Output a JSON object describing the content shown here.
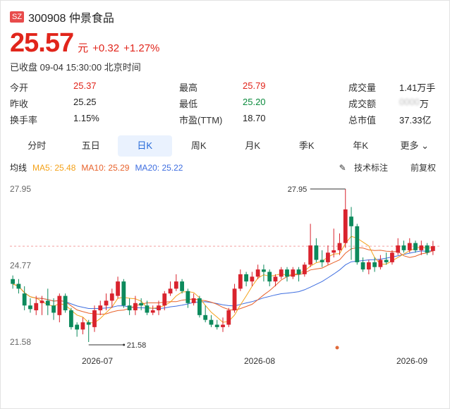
{
  "header": {
    "exchange": "SZ",
    "code_name": "300908 仲景食品"
  },
  "quote": {
    "price": "25.57",
    "currency": "元",
    "change": "+0.32",
    "change_pct": "+1.27%",
    "status": "已收盘 09-04 15:30:00 北京时间"
  },
  "stats": [
    [
      {
        "label": "今开",
        "value": "25.37",
        "color": "red"
      },
      {
        "label": "最高",
        "value": "25.79",
        "color": "red"
      },
      {
        "label": "成交量",
        "value": "1.41万手",
        "color": ""
      }
    ],
    [
      {
        "label": "昨收",
        "value": "25.25",
        "color": ""
      },
      {
        "label": "最低",
        "value": "25.20",
        "color": "green"
      },
      {
        "label": "成交额",
        "value": "万",
        "color": "blur"
      }
    ],
    [
      {
        "label": "换手率",
        "value": "1.15%",
        "color": ""
      },
      {
        "label": "市盈(TTM)",
        "value": "18.70",
        "color": ""
      },
      {
        "label": "总市值",
        "value": "37.33亿",
        "color": ""
      }
    ]
  ],
  "tabs": [
    "分时",
    "五日",
    "日K",
    "周K",
    "月K",
    "季K",
    "年K",
    "更多"
  ],
  "active_tab": 2,
  "ma": {
    "label": "均线",
    "ma5": "MA5: 25.48",
    "ma10": "MA10: 25.29",
    "ma20": "MA20: 25.22"
  },
  "toolbar": {
    "tech": "技术标注",
    "fq": "前复权"
  },
  "chart_data": {
    "type": "candlestick",
    "y_ticks": [
      "27.95",
      "24.77",
      "21.58"
    ],
    "x_ticks": [
      "2026-07",
      "2026-08",
      "2026-09"
    ],
    "ylim": [
      21.58,
      27.95
    ],
    "annotations": {
      "high": "27.95",
      "low": "21.58"
    },
    "candles": [
      [
        24.2,
        24.0,
        24.35,
        23.8
      ],
      [
        24.0,
        23.8,
        24.2,
        23.6
      ],
      [
        23.6,
        23.1,
        23.9,
        22.9
      ],
      [
        23.1,
        22.95,
        23.4,
        22.8
      ],
      [
        22.9,
        23.2,
        23.5,
        22.7
      ],
      [
        23.2,
        23.3,
        23.5,
        22.7
      ],
      [
        23.3,
        23.1,
        23.8,
        22.7
      ],
      [
        23.1,
        22.8,
        23.4,
        22.5
      ],
      [
        22.7,
        23.5,
        23.6,
        22.4
      ],
      [
        23.5,
        22.9,
        23.6,
        22.8
      ],
      [
        22.9,
        22.2,
        23.0,
        22.1
      ],
      [
        22.3,
        22.1,
        22.4,
        21.8
      ],
      [
        22.1,
        22.4,
        22.6,
        21.9
      ],
      [
        22.4,
        22.3,
        22.5,
        21.58
      ],
      [
        22.2,
        22.9,
        23.1,
        22.0
      ],
      [
        22.9,
        23.1,
        23.3,
        22.7
      ],
      [
        23.1,
        23.3,
        23.6,
        22.9
      ],
      [
        23.3,
        23.6,
        23.8,
        23.0
      ],
      [
        23.5,
        24.1,
        24.3,
        23.4
      ],
      [
        24.1,
        23.1,
        24.2,
        23.0
      ],
      [
        23.1,
        22.9,
        23.4,
        22.7
      ],
      [
        22.9,
        23.2,
        23.5,
        22.7
      ],
      [
        23.2,
        23.1,
        23.4,
        22.9
      ],
      [
        23.1,
        22.8,
        23.3,
        22.7
      ],
      [
        22.8,
        22.9,
        23.1,
        22.7
      ],
      [
        22.9,
        23.1,
        23.3,
        22.7
      ],
      [
        23.1,
        23.6,
        23.7,
        22.9
      ],
      [
        23.6,
        23.8,
        24.1,
        23.5
      ],
      [
        23.8,
        24.1,
        24.4,
        23.7
      ],
      [
        24.1,
        23.7,
        24.2,
        23.6
      ],
      [
        23.7,
        23.2,
        23.8,
        23.0
      ],
      [
        23.2,
        23.4,
        23.6,
        23.1
      ],
      [
        23.4,
        22.7,
        23.5,
        22.6
      ],
      [
        22.7,
        22.5,
        23.1,
        22.4
      ],
      [
        22.5,
        22.3,
        22.7,
        22.2
      ],
      [
        22.3,
        22.2,
        22.5,
        22.1
      ],
      [
        22.2,
        22.3,
        22.6,
        22.0
      ],
      [
        22.3,
        22.9,
        23.0,
        22.2
      ],
      [
        22.9,
        23.8,
        24.0,
        22.8
      ],
      [
        23.8,
        24.4,
        24.6,
        23.7
      ],
      [
        24.4,
        24.1,
        24.5,
        23.9
      ],
      [
        24.1,
        24.3,
        24.5,
        23.9
      ],
      [
        24.3,
        24.6,
        24.8,
        24.2
      ],
      [
        24.6,
        24.5,
        24.8,
        24.1
      ],
      [
        24.5,
        24.1,
        24.6,
        23.9
      ],
      [
        24.1,
        24.3,
        24.4,
        23.9
      ],
      [
        24.3,
        24.6,
        24.7,
        24.2
      ],
      [
        24.6,
        24.3,
        24.7,
        24.1
      ],
      [
        24.3,
        24.6,
        24.7,
        24.2
      ],
      [
        24.6,
        24.4,
        24.7,
        24.1
      ],
      [
        24.4,
        24.8,
        24.9,
        24.3
      ],
      [
        24.8,
        25.6,
        26.5,
        24.7
      ],
      [
        25.6,
        25.0,
        25.9,
        24.9
      ],
      [
        25.0,
        24.9,
        25.4,
        24.7
      ],
      [
        24.9,
        25.3,
        25.6,
        24.8
      ],
      [
        25.3,
        25.4,
        26.3,
        25.1
      ],
      [
        25.4,
        25.7,
        26.1,
        25.2
      ],
      [
        25.7,
        27.1,
        27.95,
        25.5
      ],
      [
        26.8,
        26.4,
        27.2,
        25.0
      ],
      [
        26.4,
        24.9,
        26.5,
        24.8
      ],
      [
        24.9,
        24.6,
        25.1,
        24.5
      ],
      [
        24.6,
        24.9,
        25.0,
        24.4
      ],
      [
        24.9,
        24.7,
        25.1,
        24.5
      ],
      [
        24.7,
        25.0,
        25.2,
        24.6
      ],
      [
        25.0,
        24.9,
        25.3,
        24.8
      ],
      [
        24.9,
        25.3,
        25.4,
        24.8
      ],
      [
        25.3,
        25.6,
        25.9,
        25.2
      ],
      [
        25.6,
        25.4,
        25.8,
        25.3
      ],
      [
        25.4,
        25.7,
        25.9,
        25.3
      ],
      [
        25.7,
        25.4,
        25.8,
        25.3
      ],
      [
        25.4,
        25.6,
        25.8,
        25.2
      ],
      [
        25.6,
        25.3,
        25.7,
        25.2
      ],
      [
        25.37,
        25.57,
        25.79,
        25.2
      ]
    ]
  }
}
